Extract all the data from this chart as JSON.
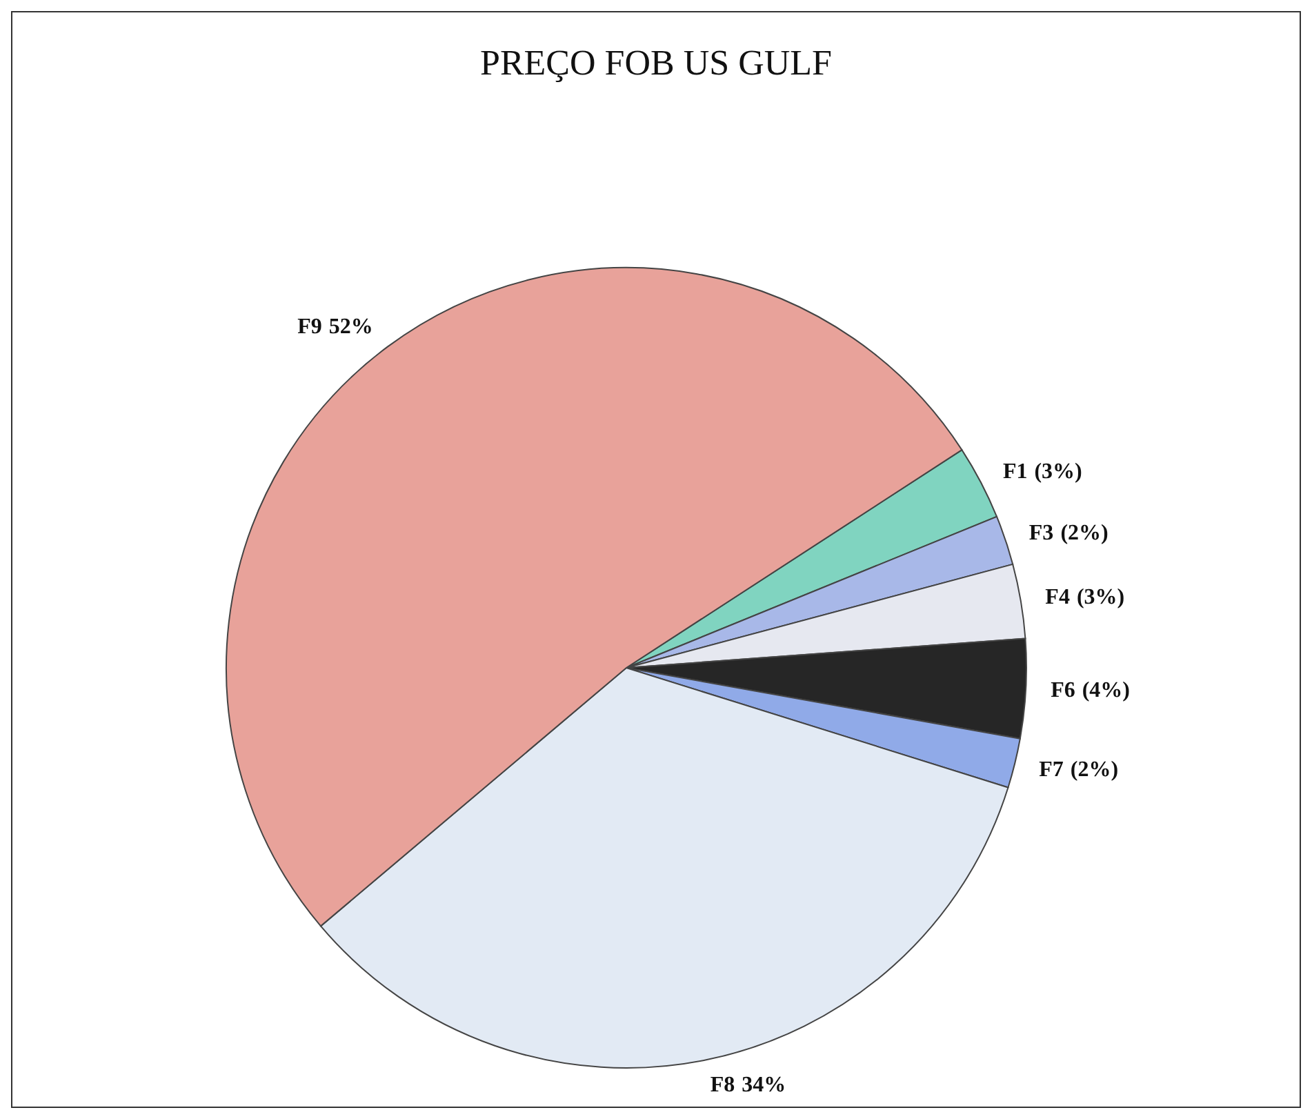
{
  "chart_data": {
    "type": "pie",
    "title": "PREÇO FOB US GULF",
    "categories": [
      "F1",
      "F3",
      "F4",
      "F6",
      "F7",
      "F8",
      "F9"
    ],
    "values": [
      3,
      2,
      3,
      4,
      2,
      34,
      52
    ],
    "value_labels": [
      "(3%)",
      "(2%)",
      "(3%)",
      "(4%)",
      "(2%)",
      "34%",
      "52%"
    ],
    "colors": [
      "#80d4c0",
      "#a8b8e8",
      "#e6e8f0",
      "#262626",
      "#90aae8",
      "#e2eaf4",
      "#e8a29a"
    ],
    "legend": false
  }
}
